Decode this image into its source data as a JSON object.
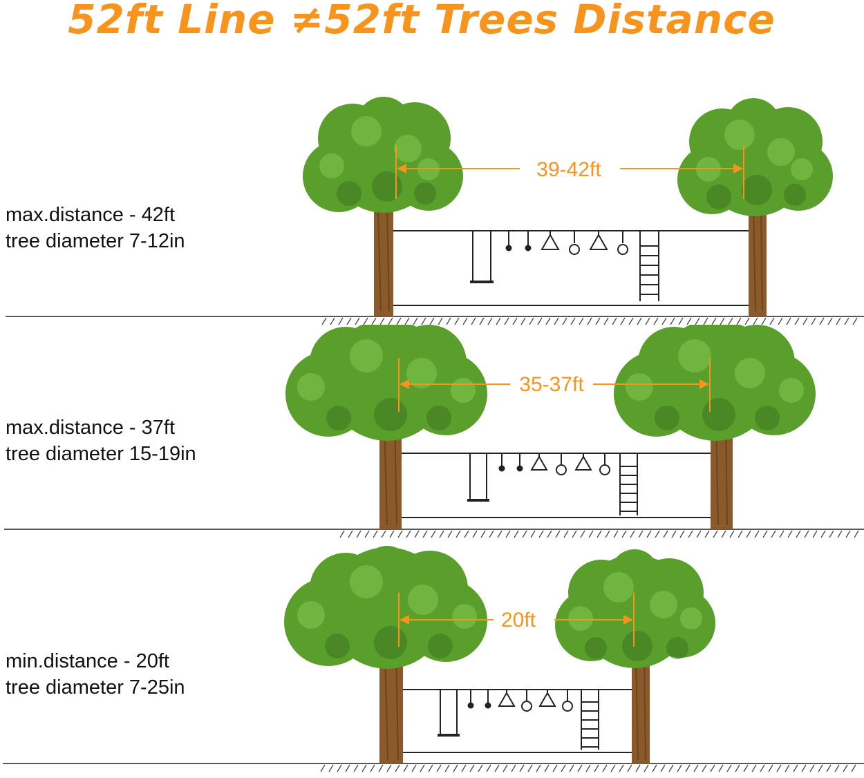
{
  "title": "52ft Line ≠52ft Trees Distance",
  "colors": {
    "accent": "#f7941d",
    "foliage": "#5a9e2c",
    "trunk": "#8a5a2b",
    "line": "#222222"
  },
  "panels": [
    {
      "label_line1": "max.distance - 42ft",
      "label_line2": "tree diameter 7-12in",
      "distance": "39-42ft"
    },
    {
      "label_line1": "max.distance - 37ft",
      "label_line2": "tree diameter 15-19in",
      "distance": "35-37ft"
    },
    {
      "label_line1": "min.distance - 20ft",
      "label_line2": "tree diameter 7-25in",
      "distance": "20ft"
    }
  ]
}
